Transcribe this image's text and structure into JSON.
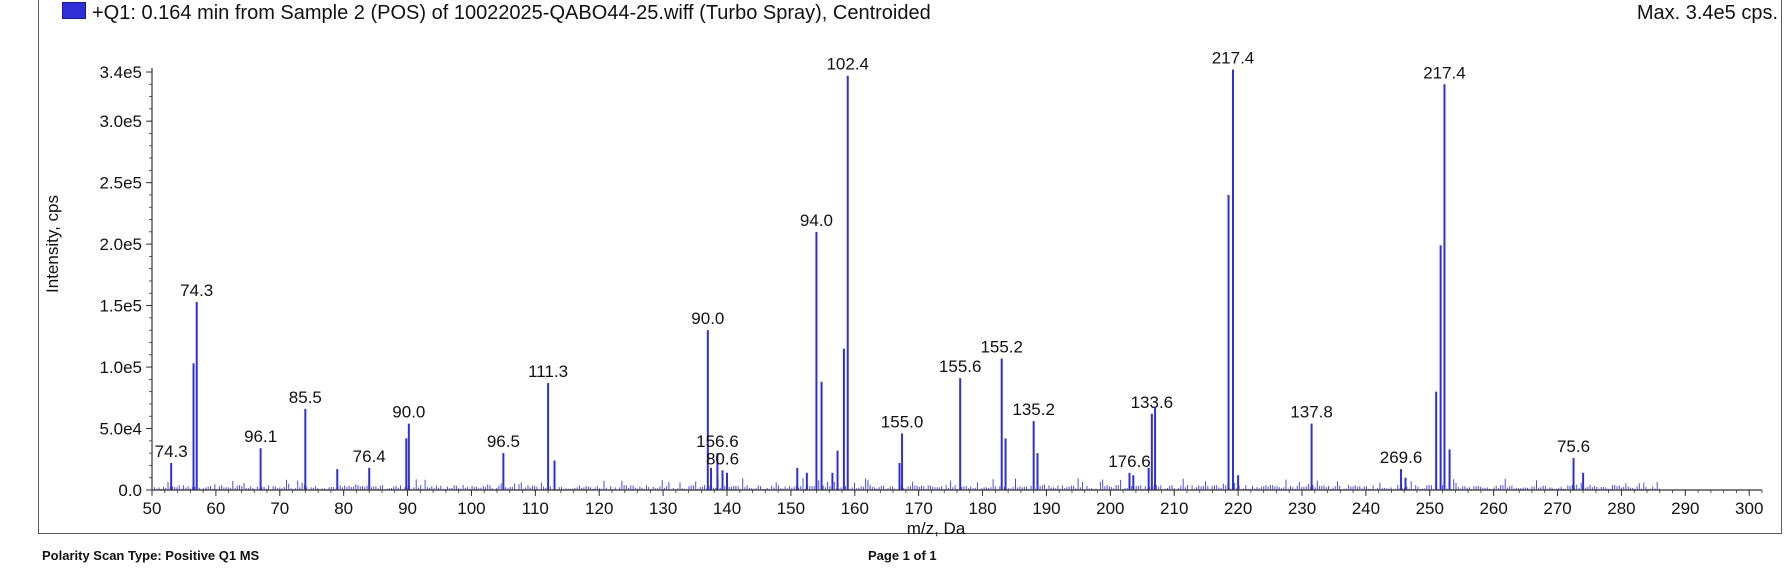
{
  "header": {
    "title": "+Q1: 0.164 min from Sample 2 (POS) of 10022025-QABO44-25.wiff (Turbo Spray), Centroided",
    "max_label": "Max. 3.4e5 cps."
  },
  "footer": {
    "left": "Polarity Scan Type: Positive Q1 MS",
    "center": "Page 1 of 1"
  },
  "colors": {
    "trace": "#2f2fd8",
    "axis": "#333333"
  },
  "chart_data": {
    "type": "bar",
    "xlabel": "m/z, Da",
    "ylabel": "Intensity, cps",
    "xlim": [
      50,
      302
    ],
    "ylim": [
      0,
      340000
    ],
    "x_ticks": [
      50,
      60,
      70,
      80,
      90,
      100,
      110,
      120,
      130,
      140,
      150,
      160,
      170,
      180,
      190,
      200,
      210,
      220,
      230,
      240,
      250,
      260,
      270,
      280,
      290,
      300
    ],
    "x_tick_labels": [
      "50",
      "60",
      "70",
      "80",
      "90",
      "100",
      "110",
      "120",
      "130",
      "140",
      "150",
      "160",
      "170",
      "180",
      "190",
      "200",
      "210",
      "220",
      "230",
      "240",
      "250",
      "260",
      "270",
      "280",
      "290",
      "300"
    ],
    "y_ticks": [
      0,
      50000,
      100000,
      150000,
      200000,
      250000,
      300000,
      340000
    ],
    "y_tick_labels": [
      "0.0",
      "5.0e4",
      "1.0e5",
      "1.5e5",
      "2.0e5",
      "2.5e5",
      "3.0e5",
      "3.4e5"
    ],
    "peaks": [
      {
        "x": 53.0,
        "y": 22000,
        "label": "74.3"
      },
      {
        "x": 56.5,
        "y": 103000,
        "label": ""
      },
      {
        "x": 57.0,
        "y": 153000,
        "label": "74.3"
      },
      {
        "x": 67.0,
        "y": 34000,
        "label": "96.1"
      },
      {
        "x": 74.0,
        "y": 66000,
        "label": "85.5"
      },
      {
        "x": 79.0,
        "y": 17000,
        "label": ""
      },
      {
        "x": 84.0,
        "y": 18000,
        "label": "76.4"
      },
      {
        "x": 89.8,
        "y": 42000,
        "label": ""
      },
      {
        "x": 90.2,
        "y": 54000,
        "label": "90.0"
      },
      {
        "x": 105.0,
        "y": 30000,
        "label": "96.5"
      },
      {
        "x": 112.0,
        "y": 87000,
        "label": "111.3"
      },
      {
        "x": 113.0,
        "y": 24000,
        "label": ""
      },
      {
        "x": 137.0,
        "y": 130000,
        "label": "90.0"
      },
      {
        "x": 137.5,
        "y": 18000,
        "label": ""
      },
      {
        "x": 138.5,
        "y": 30000,
        "label": "156.6"
      },
      {
        "x": 139.3,
        "y": 16000,
        "label": "80.6"
      },
      {
        "x": 140.0,
        "y": 14000,
        "label": ""
      },
      {
        "x": 151.0,
        "y": 18000,
        "label": ""
      },
      {
        "x": 152.5,
        "y": 14000,
        "label": ""
      },
      {
        "x": 154.0,
        "y": 210000,
        "label": "94.0"
      },
      {
        "x": 154.8,
        "y": 88000,
        "label": ""
      },
      {
        "x": 156.5,
        "y": 14000,
        "label": ""
      },
      {
        "x": 157.3,
        "y": 32000,
        "label": ""
      },
      {
        "x": 158.3,
        "y": 115000,
        "label": ""
      },
      {
        "x": 158.9,
        "y": 337000,
        "label": "102.4"
      },
      {
        "x": 167.0,
        "y": 22000,
        "label": ""
      },
      {
        "x": 167.4,
        "y": 46000,
        "label": "155.0"
      },
      {
        "x": 176.5,
        "y": 91000,
        "label": "155.6"
      },
      {
        "x": 183.0,
        "y": 107000,
        "label": "155.2"
      },
      {
        "x": 183.6,
        "y": 42000,
        "label": ""
      },
      {
        "x": 188.0,
        "y": 56000,
        "label": "135.2"
      },
      {
        "x": 188.6,
        "y": 30000,
        "label": ""
      },
      {
        "x": 203.0,
        "y": 14000,
        "label": "176.6"
      },
      {
        "x": 203.6,
        "y": 12000,
        "label": ""
      },
      {
        "x": 206.5,
        "y": 62000,
        "label": "133.6"
      },
      {
        "x": 207.0,
        "y": 68000,
        "label": ""
      },
      {
        "x": 206.0,
        "y": 18000,
        "label": ""
      },
      {
        "x": 218.5,
        "y": 240000,
        "label": ""
      },
      {
        "x": 219.2,
        "y": 342000,
        "label": "217.4"
      },
      {
        "x": 220.0,
        "y": 12000,
        "label": ""
      },
      {
        "x": 231.5,
        "y": 54000,
        "label": "137.8"
      },
      {
        "x": 245.5,
        "y": 17000,
        "label": "269.6"
      },
      {
        "x": 246.2,
        "y": 10000,
        "label": ""
      },
      {
        "x": 251.0,
        "y": 80000,
        "label": ""
      },
      {
        "x": 251.7,
        "y": 199000,
        "label": ""
      },
      {
        "x": 252.3,
        "y": 330000,
        "label": "217.4"
      },
      {
        "x": 253.1,
        "y": 33000,
        "label": ""
      },
      {
        "x": 272.5,
        "y": 26000,
        "label": "75.6"
      },
      {
        "x": 274.0,
        "y": 14000,
        "label": ""
      }
    ]
  }
}
